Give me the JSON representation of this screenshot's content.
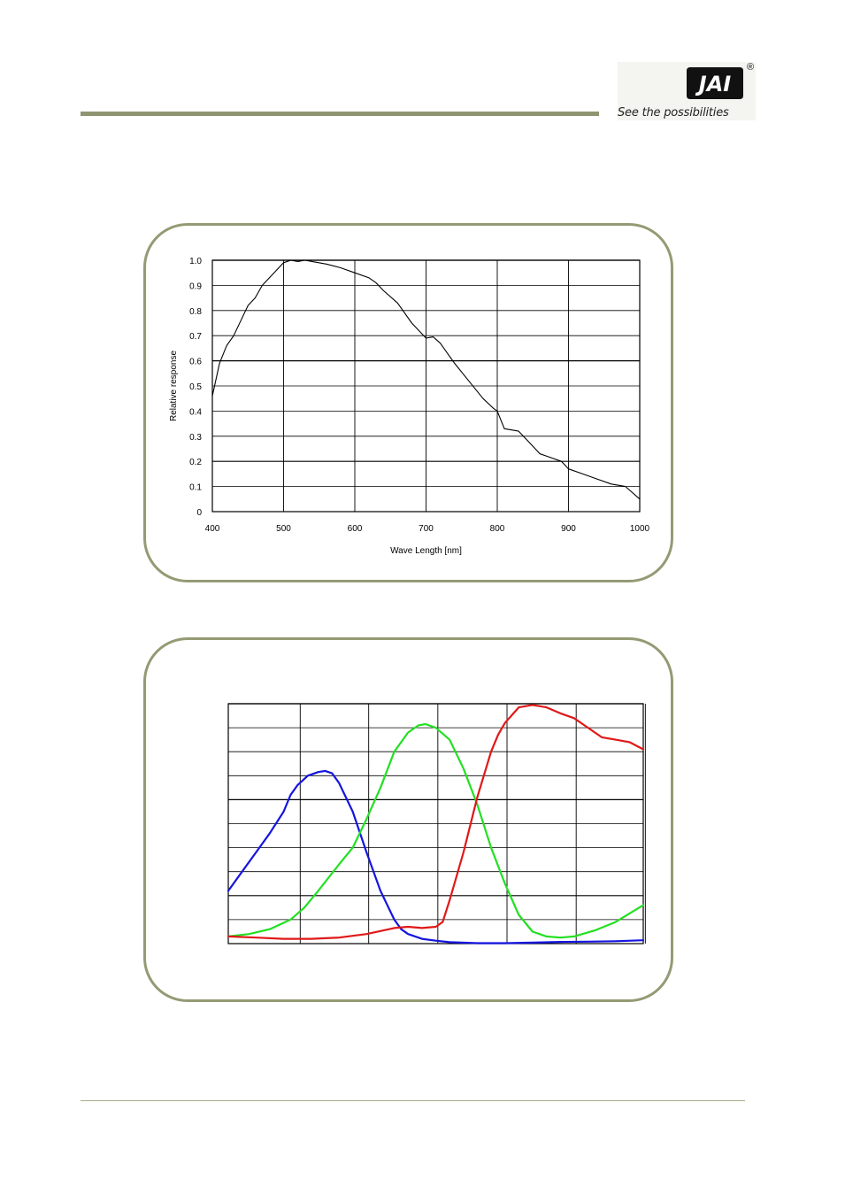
{
  "header": {
    "logo_text": "JAI",
    "registered_mark": "®",
    "tagline": "See the possibilities"
  },
  "chart_data": [
    {
      "type": "line",
      "title": "",
      "xlabel": "Wave Length [nm]",
      "ylabel": "Relative response",
      "xlim": [
        400,
        1000
      ],
      "ylim": [
        0,
        1.0
      ],
      "x_ticks": [
        "400",
        "500",
        "600",
        "700",
        "800",
        "900",
        "1000"
      ],
      "y_ticks": [
        "0",
        "0.1",
        "0.2",
        "0.3",
        "0.4",
        "0.5",
        "0.6",
        "0.7",
        "0.8",
        "0.9",
        "1.0"
      ],
      "grid": true,
      "series": [
        {
          "color": "#000000",
          "x": [
            400,
            410,
            420,
            430,
            440,
            450,
            460,
            470,
            480,
            490,
            500,
            510,
            520,
            530,
            540,
            560,
            580,
            600,
            620,
            630,
            640,
            660,
            680,
            700,
            710,
            720,
            740,
            760,
            780,
            795,
            800,
            810,
            830,
            840,
            860,
            870,
            890,
            900,
            920,
            940,
            960,
            980,
            1000
          ],
          "y": [
            0.46,
            0.59,
            0.66,
            0.7,
            0.76,
            0.82,
            0.85,
            0.9,
            0.93,
            0.96,
            0.99,
            1.0,
            0.995,
            1.0,
            0.995,
            0.985,
            0.97,
            0.95,
            0.93,
            0.91,
            0.88,
            0.83,
            0.75,
            0.69,
            0.695,
            0.67,
            0.59,
            0.52,
            0.45,
            0.41,
            0.4,
            0.33,
            0.32,
            0.29,
            0.23,
            0.22,
            0.2,
            0.17,
            0.15,
            0.13,
            0.11,
            0.1,
            0.05
          ]
        }
      ]
    },
    {
      "type": "line",
      "title": "",
      "xlim": [
        400,
        1000
      ],
      "ylim": [
        0,
        1.0
      ],
      "grid": true,
      "x_gridlines": [
        400,
        504,
        603,
        703,
        803,
        903,
        1003
      ],
      "series": [
        {
          "color": "#1515e0",
          "x": [
            400,
            420,
            440,
            460,
            480,
            490,
            500,
            515,
            530,
            540,
            550,
            560,
            580,
            600,
            620,
            640,
            650,
            660,
            680,
            700,
            720,
            760,
            800,
            840,
            880,
            920,
            960,
            1000
          ],
          "y": [
            0.22,
            0.3,
            0.38,
            0.46,
            0.55,
            0.62,
            0.66,
            0.7,
            0.715,
            0.72,
            0.71,
            0.67,
            0.55,
            0.38,
            0.22,
            0.1,
            0.06,
            0.04,
            0.02,
            0.012,
            0.006,
            0.002,
            0.002,
            0.004,
            0.007,
            0.008,
            0.01,
            0.014
          ]
        },
        {
          "color": "#22e022",
          "x": [
            400,
            430,
            460,
            490,
            510,
            530,
            560,
            580,
            600,
            620,
            640,
            660,
            675,
            685,
            700,
            720,
            740,
            760,
            780,
            800,
            820,
            840,
            860,
            880,
            900,
            930,
            960,
            1000
          ],
          "y": [
            0.03,
            0.04,
            0.06,
            0.1,
            0.15,
            0.22,
            0.33,
            0.4,
            0.52,
            0.65,
            0.8,
            0.88,
            0.91,
            0.915,
            0.9,
            0.85,
            0.73,
            0.58,
            0.4,
            0.25,
            0.12,
            0.05,
            0.03,
            0.025,
            0.03,
            0.055,
            0.09,
            0.16
          ]
        },
        {
          "color": "#e01818",
          "x": [
            400,
            440,
            480,
            520,
            560,
            600,
            640,
            660,
            680,
            700,
            710,
            720,
            740,
            760,
            780,
            790,
            800,
            820,
            840,
            860,
            880,
            900,
            920,
            940,
            960,
            980,
            1000
          ],
          "y": [
            0.03,
            0.025,
            0.02,
            0.02,
            0.025,
            0.04,
            0.065,
            0.07,
            0.065,
            0.07,
            0.09,
            0.18,
            0.38,
            0.61,
            0.8,
            0.87,
            0.92,
            0.985,
            0.995,
            0.985,
            0.96,
            0.94,
            0.9,
            0.86,
            0.85,
            0.84,
            0.81
          ]
        }
      ]
    }
  ]
}
